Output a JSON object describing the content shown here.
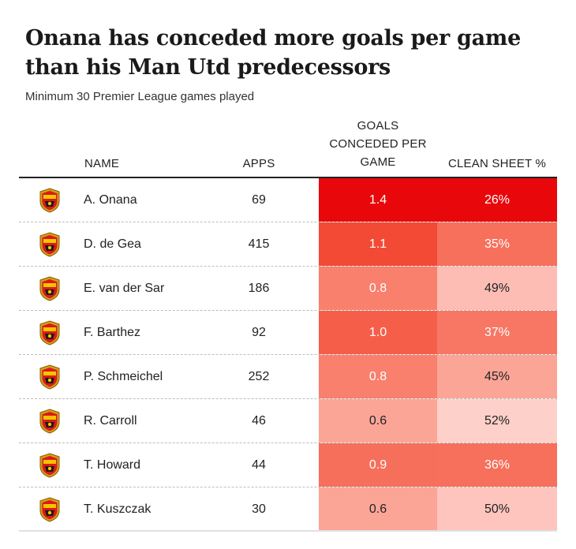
{
  "title": "Onana has conceded more goals per game than his Man Utd predecessors",
  "subtitle": "Minimum 30 Premier League games played",
  "chart_data": {
    "type": "table",
    "title": "Onana has conceded more goals per game than his Man Utd predecessors",
    "subtitle": "Minimum 30 Premier League games played",
    "columns": [
      "NAME",
      "APPS",
      "GOALS CONCEDED PER GAME",
      "CLEAN SHEET %"
    ],
    "header_goals_lines": [
      "GOALS",
      "CONCEDED PER",
      "GAME"
    ],
    "rows": [
      {
        "name": "A. Onana",
        "apps": "69",
        "goals": "1.4",
        "clean": "26%",
        "goals_bg": "#e8070b",
        "goals_fg": "#ffffff",
        "clean_bg": "#e8070b",
        "clean_fg": "#ffffff"
      },
      {
        "name": "D. de Gea",
        "apps": "415",
        "goals": "1.1",
        "clean": "35%",
        "goals_bg": "#f24a35",
        "goals_fg": "#ffffff",
        "clean_bg": "#f6705c",
        "clean_fg": "#ffffff"
      },
      {
        "name": "E. van der Sar",
        "apps": "186",
        "goals": "0.8",
        "clean": "49%",
        "goals_bg": "#f8806d",
        "goals_fg": "#ffffff",
        "clean_bg": "#fdbdb4",
        "clean_fg": "#222222"
      },
      {
        "name": "F. Barthez",
        "apps": "92",
        "goals": "1.0",
        "clean": "37%",
        "goals_bg": "#f55f4a",
        "goals_fg": "#ffffff",
        "clean_bg": "#f77764",
        "clean_fg": "#ffffff"
      },
      {
        "name": "P. Schmeichel",
        "apps": "252",
        "goals": "0.8",
        "clean": "45%",
        "goals_bg": "#f8806d",
        "goals_fg": "#ffffff",
        "clean_bg": "#fba597",
        "clean_fg": "#222222"
      },
      {
        "name": "R. Carroll",
        "apps": "46",
        "goals": "0.6",
        "clean": "52%",
        "goals_bg": "#fba597",
        "goals_fg": "#222222",
        "clean_bg": "#fdd0c9",
        "clean_fg": "#222222"
      },
      {
        "name": "T. Howard",
        "apps": "44",
        "goals": "0.9",
        "clean": "36%",
        "goals_bg": "#f66f5b",
        "goals_fg": "#ffffff",
        "clean_bg": "#f6705c",
        "clean_fg": "#ffffff"
      },
      {
        "name": "T. Kuszczak",
        "apps": "30",
        "goals": "0.6",
        "clean": "50%",
        "goals_bg": "#fba597",
        "goals_fg": "#222222",
        "clean_bg": "#fdc5bd",
        "clean_fg": "#222222"
      }
    ]
  }
}
